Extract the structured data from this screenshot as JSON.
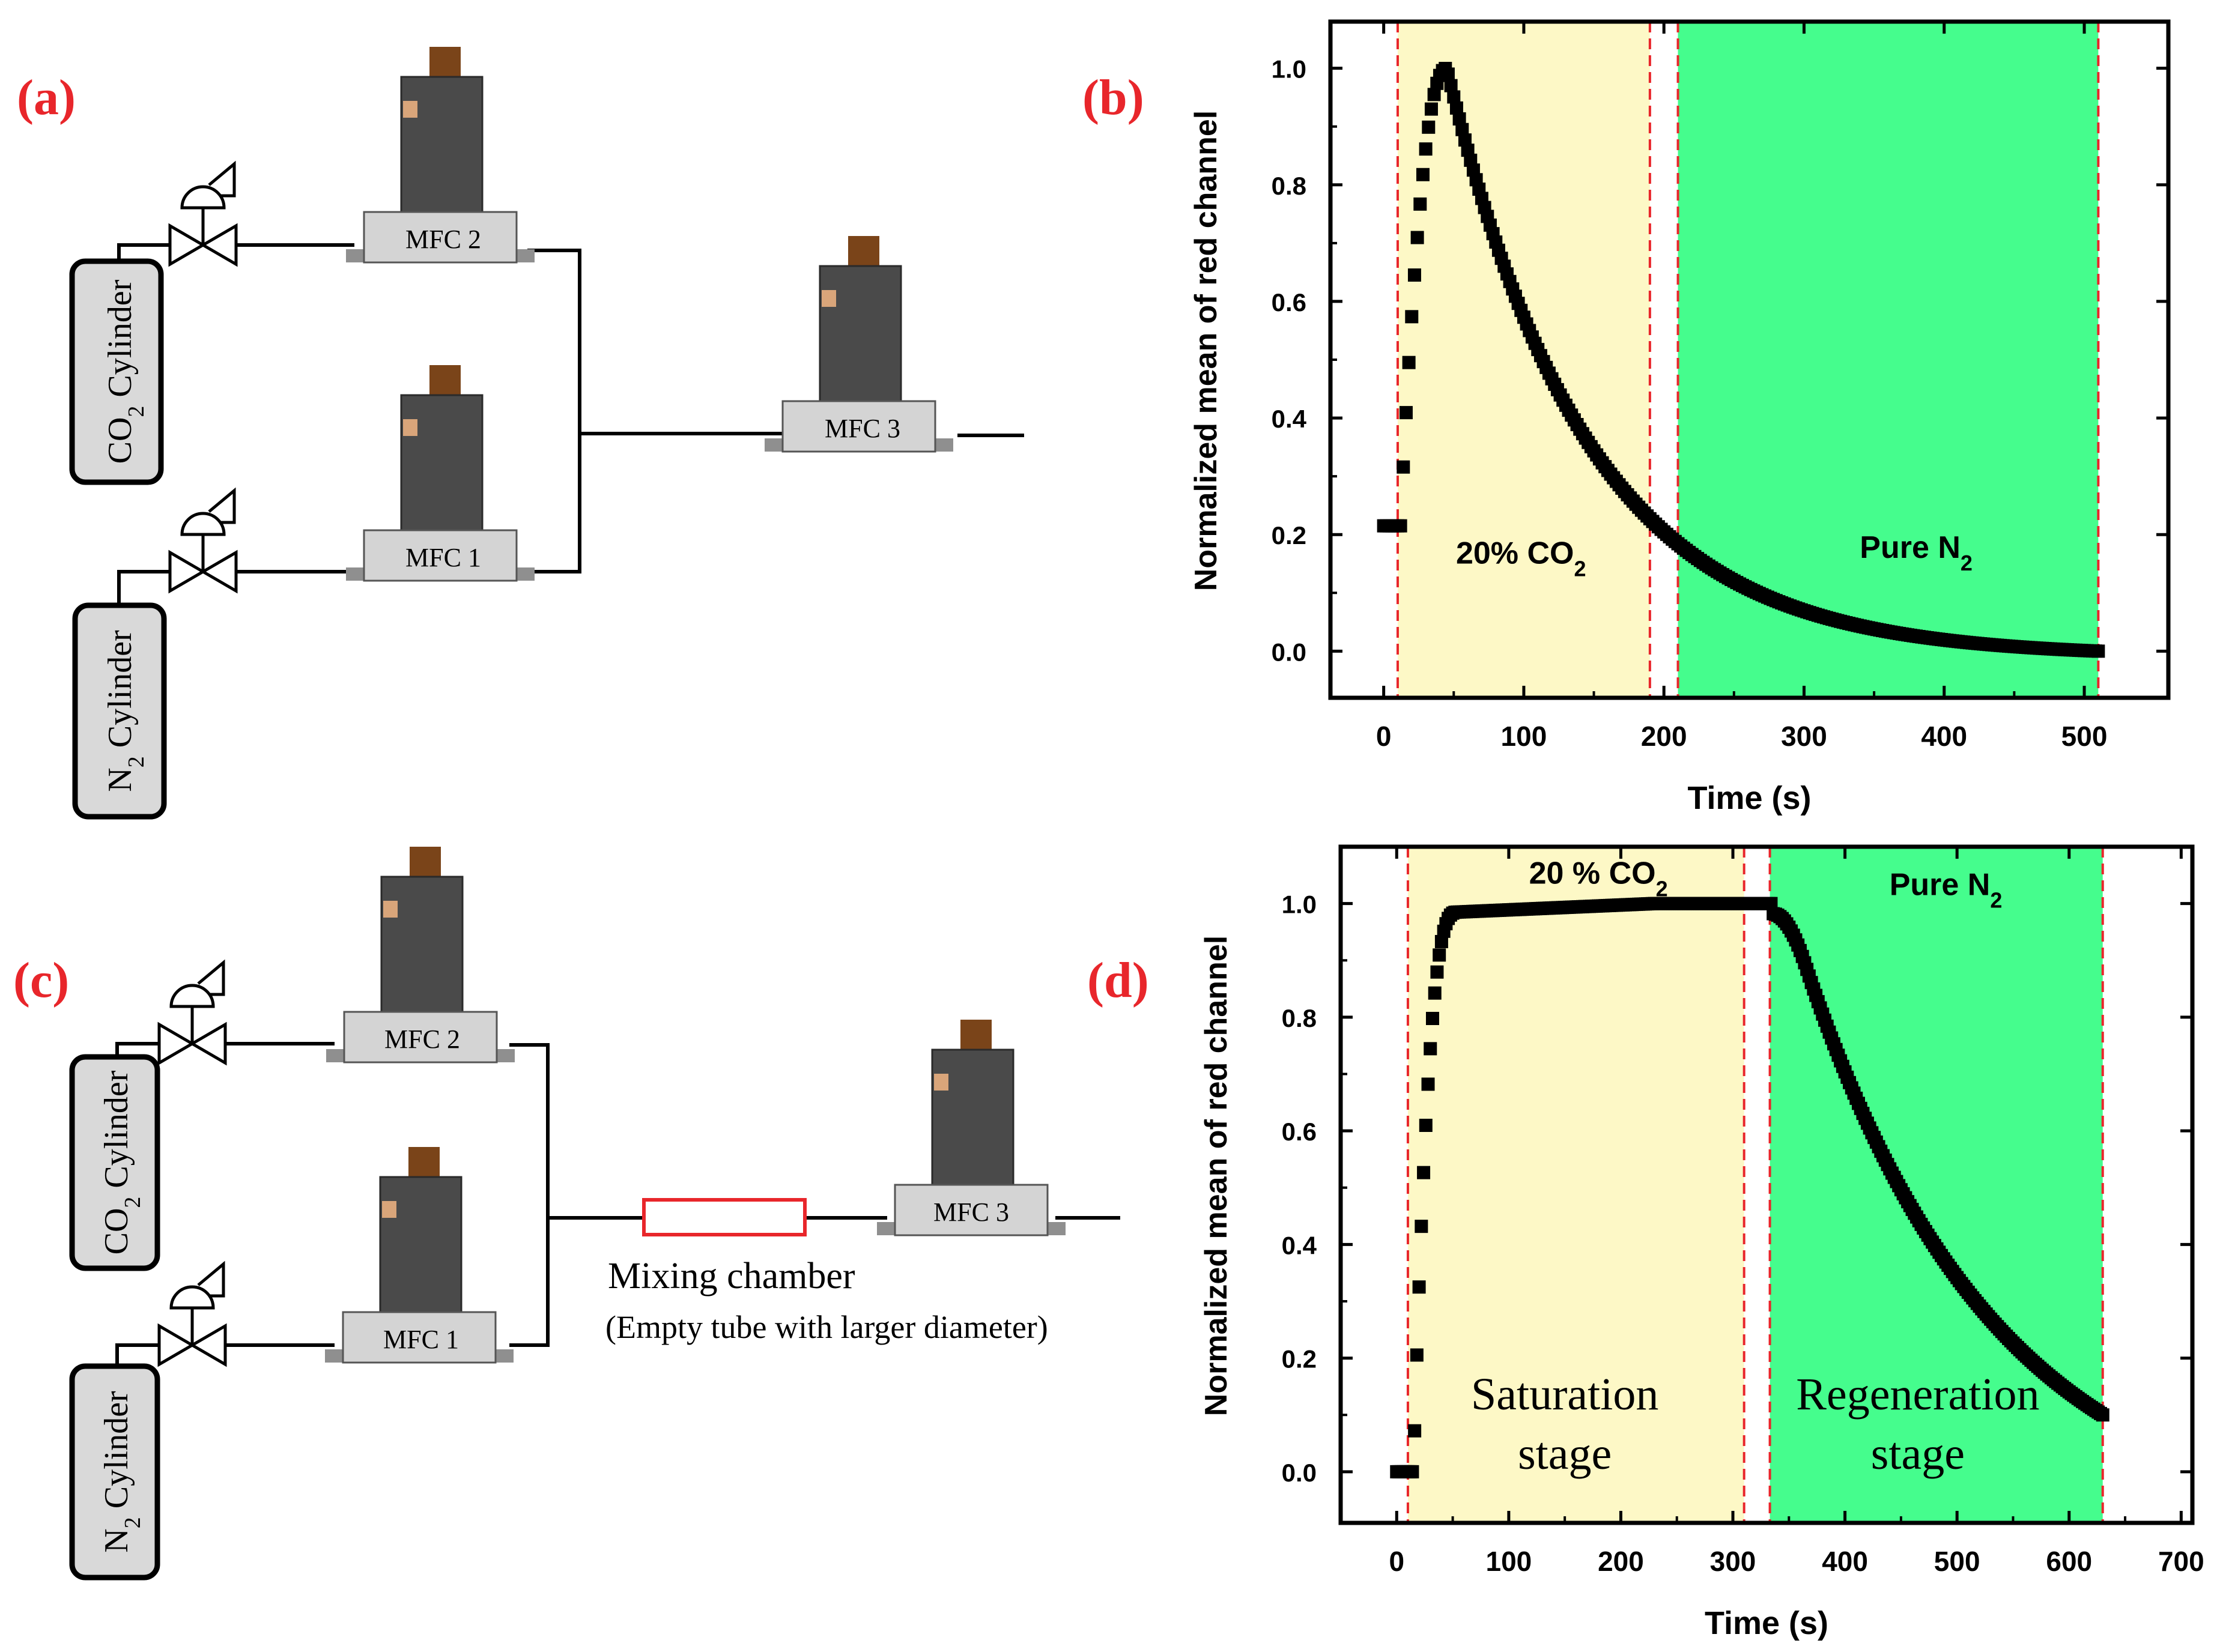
{
  "panels": {
    "a": {
      "label": "(a)",
      "components": {
        "co2_cylinder": "CO",
        "co2_sub": "2",
        "co2_suffix": " Cylinder",
        "n2_cylinder": "N",
        "n2_sub": "2",
        "n2_suffix": " Cylinder",
        "mfc1": "MFC 1",
        "mfc2": "MFC 2",
        "mfc3": "MFC 3"
      }
    },
    "b": {
      "label": "(b)"
    },
    "c": {
      "label": "(c)",
      "components": {
        "co2_cylinder": "CO",
        "co2_sub": "2",
        "co2_suffix": " Cylinder",
        "n2_cylinder": "N",
        "n2_sub": "2",
        "n2_suffix": " Cylinder",
        "mfc1": "MFC 1",
        "mfc2": "MFC 2",
        "mfc3": "MFC 3",
        "mixing_chamber": "Mixing chamber",
        "mixing_note": "(Empty tube with larger diameter)"
      }
    },
    "d": {
      "label": "(d)"
    }
  },
  "colors": {
    "saturation_region": "#fdf8c6",
    "regeneration_region": "#45fd8d",
    "boundary_line": "#e8262b",
    "data": "#000000",
    "mfc_body": "#4a4a4a",
    "mfc_cap": "#7a4419",
    "mfc_base": "#d4d4d4",
    "chamber": "#e8262b",
    "panel_letter": "#e8262b"
  },
  "chart_data": [
    {
      "id": "b",
      "type": "scatter",
      "title": "",
      "xlabel": "Time (s)",
      "ylabel": "Normalized mean of red channel",
      "xlim": [
        -38,
        560
      ],
      "ylim": [
        -0.08,
        1.08
      ],
      "xticks": [
        0,
        100,
        200,
        300,
        400,
        500
      ],
      "yticks": [
        0.0,
        0.2,
        0.4,
        0.6,
        0.8,
        1.0
      ],
      "ytick_labels": [
        "0.0",
        "0.2",
        "0.4",
        "0.6",
        "0.8",
        "1.0"
      ],
      "regions": [
        {
          "name": "co2",
          "x0": 10,
          "x1": 190,
          "color_key": "saturation_region"
        },
        {
          "name": "n2",
          "x0": 210,
          "x1": 510,
          "color_key": "regeneration_region"
        }
      ],
      "boundaries": [
        10,
        190,
        210,
        510
      ],
      "annotations": [
        {
          "text": "20% CO",
          "sub": "2",
          "x": 98,
          "y": 0.15
        },
        {
          "text": "Pure N",
          "sub": "2",
          "x": 380,
          "y": 0.16
        }
      ],
      "curve": {
        "x0": 0,
        "x1": 510,
        "step": 2,
        "baseline": 0.215,
        "t_rise_start": 12,
        "t_peak": 45,
        "peak": 1.0,
        "decay_tau": 100,
        "end_value": 0.0
      }
    },
    {
      "id": "d",
      "type": "scatter",
      "title": "",
      "xlabel": "Time (s)",
      "ylabel": "Normalized mean of red channel",
      "xlim": [
        -50,
        710
      ],
      "ylim": [
        -0.09,
        1.1
      ],
      "xticks": [
        0,
        100,
        200,
        300,
        400,
        500,
        600,
        700
      ],
      "yticks": [
        0.0,
        0.2,
        0.4,
        0.6,
        0.8,
        1.0
      ],
      "ytick_labels": [
        "0.0",
        "0.2",
        "0.4",
        "0.6",
        "0.8",
        "1.0"
      ],
      "regions": [
        {
          "name": "saturation",
          "x0": 10,
          "x1": 310,
          "color_key": "saturation_region"
        },
        {
          "name": "regeneration",
          "x0": 333,
          "x1": 630,
          "color_key": "regeneration_region"
        }
      ],
      "boundaries": [
        10,
        310,
        333,
        630
      ],
      "annotations": [
        {
          "text": "20 % CO",
          "sub": "2",
          "x": 180,
          "y": 1.035
        },
        {
          "text": "Pure N",
          "sub": "2",
          "x": 490,
          "y": 1.015
        }
      ],
      "stage_labels": [
        {
          "line1": "Saturation",
          "line2": "stage",
          "x": 150,
          "y1": 0.11,
          "y2": 0.005
        },
        {
          "line1": "Regeneration",
          "line2": "stage",
          "x": 465,
          "y1": 0.11,
          "y2": 0.005
        }
      ],
      "curve": {
        "x0": 0,
        "x1": 630,
        "step": 2,
        "baseline": 0.0,
        "t_rise_start": 15,
        "t_plateau": 55,
        "plateau": 0.985,
        "plateau_end": 1.0,
        "t_fall_start": 335,
        "decay_tau": 170,
        "end_value": 0.1
      }
    }
  ]
}
